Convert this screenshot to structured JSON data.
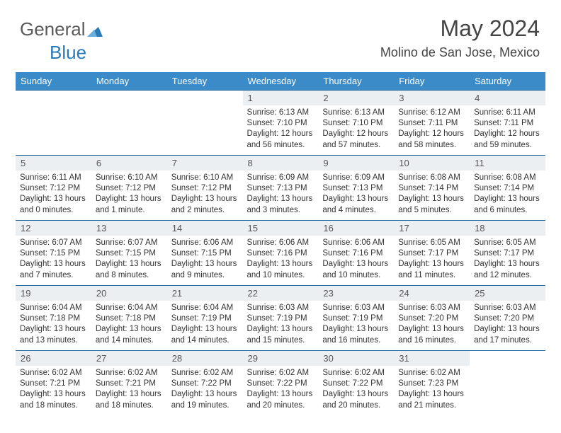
{
  "brand": {
    "part1": "General",
    "part2": "Blue",
    "color_gray": "#5a5a5a",
    "color_blue": "#2a7ab8"
  },
  "title": "May 2024",
  "subtitle": "Molino de San Jose, Mexico",
  "header_bg": "#3b8bc9",
  "header_fg": "#ffffff",
  "row_border": "#2a6a9a",
  "daynum_bg": "#eceff2",
  "weekdays": [
    "Sunday",
    "Monday",
    "Tuesday",
    "Wednesday",
    "Thursday",
    "Friday",
    "Saturday"
  ],
  "weeks": [
    [
      null,
      null,
      null,
      {
        "n": "1",
        "sr": "6:13 AM",
        "ss": "7:10 PM",
        "dl": "12 hours and 56 minutes."
      },
      {
        "n": "2",
        "sr": "6:13 AM",
        "ss": "7:10 PM",
        "dl": "12 hours and 57 minutes."
      },
      {
        "n": "3",
        "sr": "6:12 AM",
        "ss": "7:11 PM",
        "dl": "12 hours and 58 minutes."
      },
      {
        "n": "4",
        "sr": "6:11 AM",
        "ss": "7:11 PM",
        "dl": "12 hours and 59 minutes."
      }
    ],
    [
      {
        "n": "5",
        "sr": "6:11 AM",
        "ss": "7:12 PM",
        "dl": "13 hours and 0 minutes."
      },
      {
        "n": "6",
        "sr": "6:10 AM",
        "ss": "7:12 PM",
        "dl": "13 hours and 1 minute."
      },
      {
        "n": "7",
        "sr": "6:10 AM",
        "ss": "7:12 PM",
        "dl": "13 hours and 2 minutes."
      },
      {
        "n": "8",
        "sr": "6:09 AM",
        "ss": "7:13 PM",
        "dl": "13 hours and 3 minutes."
      },
      {
        "n": "9",
        "sr": "6:09 AM",
        "ss": "7:13 PM",
        "dl": "13 hours and 4 minutes."
      },
      {
        "n": "10",
        "sr": "6:08 AM",
        "ss": "7:14 PM",
        "dl": "13 hours and 5 minutes."
      },
      {
        "n": "11",
        "sr": "6:08 AM",
        "ss": "7:14 PM",
        "dl": "13 hours and 6 minutes."
      }
    ],
    [
      {
        "n": "12",
        "sr": "6:07 AM",
        "ss": "7:15 PM",
        "dl": "13 hours and 7 minutes."
      },
      {
        "n": "13",
        "sr": "6:07 AM",
        "ss": "7:15 PM",
        "dl": "13 hours and 8 minutes."
      },
      {
        "n": "14",
        "sr": "6:06 AM",
        "ss": "7:15 PM",
        "dl": "13 hours and 9 minutes."
      },
      {
        "n": "15",
        "sr": "6:06 AM",
        "ss": "7:16 PM",
        "dl": "13 hours and 10 minutes."
      },
      {
        "n": "16",
        "sr": "6:06 AM",
        "ss": "7:16 PM",
        "dl": "13 hours and 10 minutes."
      },
      {
        "n": "17",
        "sr": "6:05 AM",
        "ss": "7:17 PM",
        "dl": "13 hours and 11 minutes."
      },
      {
        "n": "18",
        "sr": "6:05 AM",
        "ss": "7:17 PM",
        "dl": "13 hours and 12 minutes."
      }
    ],
    [
      {
        "n": "19",
        "sr": "6:04 AM",
        "ss": "7:18 PM",
        "dl": "13 hours and 13 minutes."
      },
      {
        "n": "20",
        "sr": "6:04 AM",
        "ss": "7:18 PM",
        "dl": "13 hours and 14 minutes."
      },
      {
        "n": "21",
        "sr": "6:04 AM",
        "ss": "7:19 PM",
        "dl": "13 hours and 14 minutes."
      },
      {
        "n": "22",
        "sr": "6:03 AM",
        "ss": "7:19 PM",
        "dl": "13 hours and 15 minutes."
      },
      {
        "n": "23",
        "sr": "6:03 AM",
        "ss": "7:19 PM",
        "dl": "13 hours and 16 minutes."
      },
      {
        "n": "24",
        "sr": "6:03 AM",
        "ss": "7:20 PM",
        "dl": "13 hours and 16 minutes."
      },
      {
        "n": "25",
        "sr": "6:03 AM",
        "ss": "7:20 PM",
        "dl": "13 hours and 17 minutes."
      }
    ],
    [
      {
        "n": "26",
        "sr": "6:02 AM",
        "ss": "7:21 PM",
        "dl": "13 hours and 18 minutes."
      },
      {
        "n": "27",
        "sr": "6:02 AM",
        "ss": "7:21 PM",
        "dl": "13 hours and 18 minutes."
      },
      {
        "n": "28",
        "sr": "6:02 AM",
        "ss": "7:22 PM",
        "dl": "13 hours and 19 minutes."
      },
      {
        "n": "29",
        "sr": "6:02 AM",
        "ss": "7:22 PM",
        "dl": "13 hours and 20 minutes."
      },
      {
        "n": "30",
        "sr": "6:02 AM",
        "ss": "7:22 PM",
        "dl": "13 hours and 20 minutes."
      },
      {
        "n": "31",
        "sr": "6:02 AM",
        "ss": "7:23 PM",
        "dl": "13 hours and 21 minutes."
      },
      null
    ]
  ],
  "labels": {
    "sunrise": "Sunrise:",
    "sunset": "Sunset:",
    "daylight": "Daylight:"
  }
}
